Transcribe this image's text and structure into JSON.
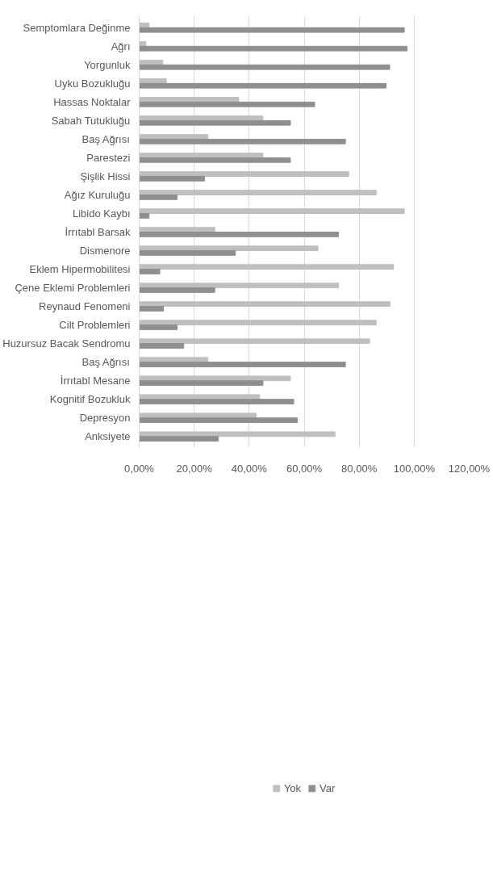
{
  "chart_data": {
    "type": "bar",
    "orientation": "horizontal",
    "categories": [
      "Semptomlara Değinme",
      "Ağrı",
      "Yorgunluk",
      "Uyku Bozukluğu",
      "Hassas Noktalar",
      "Sabah Tutukluğu",
      "Baş Ağrısı",
      "Parestezi",
      "Şişlik Hissi",
      "Ağız Kuruluğu",
      "Libido Kaybı",
      "İrrıtabl Barsak",
      "Dismenore",
      "Eklem Hipermobilitesi",
      "Çene Eklemi Problemleri",
      "Reynaud Fenomeni",
      "Cilt Problemleri",
      "Huzursuz Bacak Sendromu",
      "Baş Ağrısı",
      "İrrıtabl Mesane",
      "Kognitif Bozukluk",
      "Depresyon",
      "Anksiyete"
    ],
    "series": [
      {
        "name": "Yok",
        "color": "#bfbfbf",
        "values": [
          3.6,
          2.4,
          8.6,
          9.9,
          36.2,
          45,
          25,
          45,
          76.2,
          86.2,
          96.4,
          27.5,
          65,
          92.5,
          72.5,
          91.2,
          86.2,
          83.8,
          25,
          55,
          43.8,
          42.5,
          71.2
        ]
      },
      {
        "name": "Var",
        "color": "#8f8f8f",
        "values": [
          96.4,
          97.4,
          91.1,
          89.8,
          63.8,
          55,
          75,
          55,
          23.8,
          13.8,
          3.6,
          72.5,
          35,
          7.5,
          27.5,
          8.8,
          13.8,
          16.2,
          75,
          45,
          56.2,
          57.5,
          28.8
        ]
      }
    ],
    "xlim": [
      0,
      120
    ],
    "xticks": [
      {
        "value": 0,
        "label": "0,00%"
      },
      {
        "value": 20,
        "label": "20,00%"
      },
      {
        "value": 40,
        "label": "40,00%"
      },
      {
        "value": 60,
        "label": "60,00%"
      },
      {
        "value": 80,
        "label": "80,00%"
      },
      {
        "value": 100,
        "label": "100,00%"
      },
      {
        "value": 120,
        "label": "120,00%"
      }
    ],
    "grid": "x",
    "legend": "bottom"
  }
}
